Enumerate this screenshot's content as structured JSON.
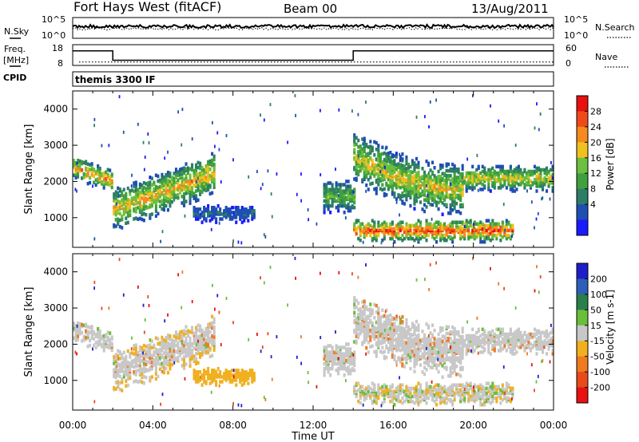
{
  "header": {
    "station": "Fort Hays West (fitACF)",
    "beam": "Beam 00",
    "date": "13/Aug/2011"
  },
  "panels": {
    "noise": {
      "left_label": "N.Sky",
      "right_label": "N.Search",
      "left_ticks": [
        "10^5",
        "10^0"
      ],
      "right_ticks": [
        "10^5",
        "10^0"
      ]
    },
    "freq": {
      "left_label": "Freq.",
      "left_unit": "[MHz]",
      "right_label": "Nave",
      "left_ticks": [
        "18",
        "8"
      ],
      "right_ticks": [
        "60",
        "0"
      ]
    },
    "cpid": {
      "label": "CPID",
      "text": "themis 3300 IF"
    }
  },
  "colors": {
    "power": [
      "#1a1aff",
      "#1f4fb3",
      "#2e7d66",
      "#3fa03f",
      "#6cbf3f",
      "#f0c020",
      "#f58a1e",
      "#f04a1a",
      "#e81010"
    ],
    "velocity": [
      "#1e1ec8",
      "#2b5fb8",
      "#2a7f4a",
      "#6abe3a",
      "#c8c8c8",
      "#f0b020",
      "#f07a20",
      "#e84a1a",
      "#e81010"
    ]
  },
  "chart_data": [
    {
      "type": "heatmap",
      "title": "",
      "xlabel": "Time UT",
      "ylabel": "Slant Range [km]",
      "xlim": [
        "00:00",
        "24:00"
      ],
      "ylim": [
        180,
        4500
      ],
      "x_ticks": [
        "00:00",
        "04:00",
        "08:00",
        "12:00",
        "16:00",
        "20:00",
        "00:00"
      ],
      "y_ticks": [
        1000,
        2000,
        3000,
        4000
      ],
      "colorbar": {
        "label": "Power [dB]",
        "ticks": [
          4,
          8,
          12,
          16,
          20,
          24,
          28
        ],
        "range": [
          0,
          30
        ]
      },
      "echo_bands": [
        {
          "start_h": 0.0,
          "end_h": 2.0,
          "range_km": [
            1950,
            2650
          ],
          "peak_dB": 24
        },
        {
          "start_h": 2.0,
          "end_h": 7.0,
          "range_km": [
            1100,
            2400
          ],
          "peak_dB": 22
        },
        {
          "start_h": 6.0,
          "end_h": 9.0,
          "range_km": [
            850,
            1400
          ],
          "peak_dB": 8
        },
        {
          "start_h": 12.5,
          "end_h": 14.0,
          "range_km": [
            1100,
            2100
          ],
          "peak_dB": 16
        },
        {
          "start_h": 14.0,
          "end_h": 19.5,
          "range_km": [
            1400,
            3000
          ],
          "peak_dB": 20
        },
        {
          "start_h": 14.0,
          "end_h": 22.0,
          "range_km": [
            300,
            1000
          ],
          "peak_dB": 28
        },
        {
          "start_h": 19.5,
          "end_h": 24.0,
          "range_km": [
            1700,
            2500
          ],
          "peak_dB": 20
        }
      ]
    },
    {
      "type": "heatmap",
      "title": "",
      "xlabel": "Time UT",
      "ylabel": "Slant Range [km]",
      "xlim": [
        "00:00",
        "24:00"
      ],
      "ylim": [
        180,
        4500
      ],
      "x_ticks": [
        "00:00",
        "04:00",
        "08:00",
        "12:00",
        "16:00",
        "20:00",
        "00:00"
      ],
      "y_ticks": [
        1000,
        2000,
        3000,
        4000
      ],
      "colorbar": {
        "label": "Velocity [m s-1]",
        "ticks": [
          200,
          100,
          50,
          15,
          -15,
          -50,
          -100,
          -200
        ]
      },
      "ground_scatter_color": "#c8c8c8"
    },
    {
      "type": "line",
      "title": "",
      "series": [
        {
          "name": "Freq.",
          "values_MHz": [
            [
              0,
              15
            ],
            [
              2,
              15
            ],
            [
              2,
              10.5
            ],
            [
              14,
              10.5
            ],
            [
              14,
              15
            ],
            [
              24,
              15
            ]
          ]
        },
        {
          "name": "Nave",
          "values": [
            [
              0,
              10
            ],
            [
              24,
              10
            ]
          ]
        }
      ]
    }
  ]
}
